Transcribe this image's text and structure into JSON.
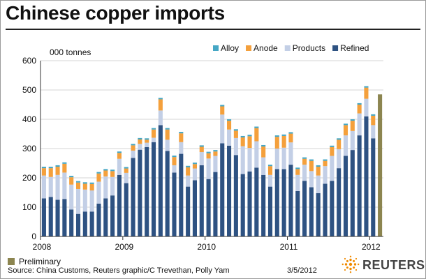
{
  "title": "Chinese copper imports",
  "units_label": "000 tonnes",
  "legend_preliminary": "Preliminary",
  "source": "Source: China Customs, Reuters graphic/C Trevethan, Polly Yam",
  "date": "3/5/2012",
  "logo": "REUTERS",
  "colors": {
    "Refined": "#2e5282",
    "Products": "#c3cfe6",
    "Anode": "#f4a03c",
    "Alloy": "#45a7c5",
    "Preliminary": "#8c8550",
    "grid": "#d4d4d4",
    "axis": "#333333"
  },
  "chart_data": {
    "type": "bar",
    "stacked": true,
    "ylim": [
      0,
      600
    ],
    "yticks": [
      0,
      100,
      200,
      300,
      400,
      500,
      600
    ],
    "grid": true,
    "legend_position": "top-right",
    "xtick_labels": [
      "2008",
      "2009",
      "2010",
      "2011",
      "2012"
    ],
    "categories": [
      "Jan 2008",
      "Feb 2008",
      "Mar 2008",
      "Apr 2008",
      "May 2008",
      "Jun 2008",
      "Jul 2008",
      "Aug 2008",
      "Sep 2008",
      "Oct 2008",
      "Nov 2008",
      "Dec 2008",
      "Jan 2009",
      "Feb 2009",
      "Mar 2009",
      "Apr 2009",
      "May 2009",
      "Jun 2009",
      "Jul 2009",
      "Aug 2009",
      "Sep 2009",
      "Oct 2009",
      "Nov 2009",
      "Dec 2009",
      "Jan 2010",
      "Feb 2010",
      "Mar 2010",
      "Apr 2010",
      "May 2010",
      "Jun 2010",
      "Jul 2010",
      "Aug 2010",
      "Sep 2010",
      "Oct 2010",
      "Nov 2010",
      "Dec 2010",
      "Jan 2011",
      "Feb 2011",
      "Mar 2011",
      "Apr 2011",
      "May 2011",
      "Jun 2011",
      "Jul 2011",
      "Aug 2011",
      "Sep 2011",
      "Oct 2011",
      "Nov 2011",
      "Dec 2011",
      "Jan 2012",
      "Feb 2012"
    ],
    "series": [
      {
        "name": "Refined",
        "values": [
          130,
          135,
          125,
          128,
          92,
          77,
          85,
          85,
          112,
          130,
          140,
          210,
          182,
          268,
          296,
          305,
          322,
          380,
          292,
          218,
          282,
          170,
          192,
          243,
          196,
          220,
          318,
          310,
          278,
          213,
          222,
          235,
          210,
          170,
          230,
          230,
          245,
          155,
          190,
          168,
          148,
          180,
          190,
          233,
          275,
          295,
          345,
          410,
          335,
          0
        ]
      },
      {
        "name": "Products",
        "values": [
          78,
          68,
          85,
          90,
          85,
          85,
          75,
          72,
          75,
          75,
          63,
          55,
          35,
          25,
          20,
          15,
          15,
          50,
          38,
          25,
          40,
          38,
          40,
          45,
          70,
          55,
          98,
          55,
          58,
          95,
          80,
          90,
          60,
          40,
          70,
          73,
          76,
          55,
          55,
          55,
          60,
          60,
          85,
          65,
          70,
          65,
          75,
          60,
          45,
          0
        ]
      },
      {
        "name": "Anode",
        "values": [
          25,
          30,
          28,
          30,
          25,
          22,
          20,
          22,
          28,
          20,
          20,
          20,
          15,
          18,
          15,
          10,
          28,
          38,
          35,
          28,
          30,
          28,
          15,
          18,
          18,
          15,
          28,
          30,
          25,
          30,
          40,
          45,
          37,
          30,
          40,
          40,
          30,
          20,
          20,
          35,
          30,
          18,
          30,
          32,
          35,
          35,
          30,
          38,
          32,
          0
        ]
      },
      {
        "name": "Alloy",
        "values": [
          5,
          5,
          5,
          5,
          5,
          5,
          5,
          5,
          5,
          5,
          5,
          5,
          5,
          5,
          5,
          5,
          5,
          5,
          5,
          5,
          5,
          5,
          5,
          5,
          5,
          5,
          5,
          5,
          5,
          5,
          5,
          5,
          5,
          5,
          5,
          5,
          5,
          5,
          5,
          5,
          5,
          5,
          5,
          5,
          5,
          5,
          5,
          5,
          5,
          0
        ]
      },
      {
        "name": "Preliminary",
        "values": [
          0,
          0,
          0,
          0,
          0,
          0,
          0,
          0,
          0,
          0,
          0,
          0,
          0,
          0,
          0,
          0,
          0,
          0,
          0,
          0,
          0,
          0,
          0,
          0,
          0,
          0,
          0,
          0,
          0,
          0,
          0,
          0,
          0,
          0,
          0,
          0,
          0,
          0,
          0,
          0,
          0,
          0,
          0,
          0,
          0,
          0,
          0,
          0,
          0,
          485
        ]
      }
    ],
    "legend_entries": [
      "Alloy",
      "Anode",
      "Products",
      "Refined"
    ]
  }
}
